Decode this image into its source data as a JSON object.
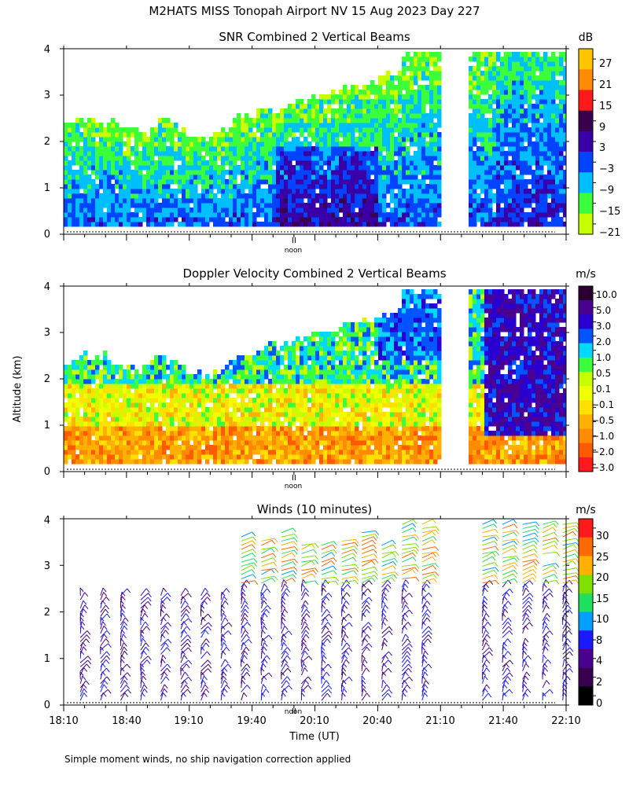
{
  "figure": {
    "title": "M2HATS MISS Tonopah Airport NV  15 Aug 2023 Day 227",
    "ylabel": "Altitude (km)",
    "xlabel": "Time (UT)",
    "footnote": "Simple moment winds, no ship navigation correction applied",
    "noon_label": "noon"
  },
  "colors": {
    "background": "#ffffff",
    "axis": "#000000",
    "snr_scale": [
      "#c8ff00",
      "#3cff3c",
      "#00bfff",
      "#0044ff",
      "#3a00a8",
      "#3a0050",
      "#ff1a1a",
      "#ff8c00",
      "#ffc400"
    ],
    "vel_scale": [
      "#ff1a1a",
      "#ff5a00",
      "#ff8c00",
      "#ffb000",
      "#ffe000",
      "#f0ff00",
      "#c8ff00",
      "#3cff3c",
      "#00d8ff",
      "#0055ff",
      "#2a00d0",
      "#4a0090",
      "#2a0030"
    ],
    "wind_scale": [
      "#000000",
      "#3a0050",
      "#4a0090",
      "#1a1aff",
      "#00a0ff",
      "#20e060",
      "#80e000",
      "#ffb000",
      "#ff6a00",
      "#ff1a1a"
    ]
  },
  "chart_data": [
    {
      "type": "heatmap",
      "title": "SNR Combined 2 Vertical Beams",
      "units": "dB",
      "x_range": [
        "18:10",
        "22:10"
      ],
      "ylim": [
        0,
        4
      ],
      "y_ticks": [
        "0",
        "1",
        "2",
        "3",
        "4"
      ],
      "colorbar_ticks": [
        "27",
        "21",
        "15",
        "9",
        "3",
        "−3",
        "−9",
        "−15",
        "−21"
      ],
      "data_gap": [
        "21:10",
        "21:23"
      ],
      "noon_marker": "noon"
    },
    {
      "type": "heatmap",
      "title": "Doppler Velocity Combined 2 Vertical Beams",
      "units": "m/s",
      "x_range": [
        "18:10",
        "22:10"
      ],
      "ylim": [
        0,
        4
      ],
      "y_ticks": [
        "0",
        "1",
        "2",
        "3",
        "4"
      ],
      "colorbar_ticks": [
        "10.0",
        "5.0",
        "3.0",
        "2.0",
        "1.0",
        "0.5",
        "0.1",
        "−0.1",
        "−0.5",
        "−1.0",
        "−2.0",
        "−3.0"
      ],
      "data_gap": [
        "21:10",
        "21:23"
      ],
      "noon_marker": "noon"
    },
    {
      "type": "scatter",
      "title": "Winds (10 minutes)",
      "units": "m/s",
      "x_ticks": [
        "18:10",
        "18:40",
        "19:10",
        "19:40",
        "20:10",
        "20:40",
        "21:10",
        "21:40",
        "22:10"
      ],
      "ylim": [
        0,
        4
      ],
      "y_ticks": [
        "0",
        "1",
        "2",
        "3",
        "4"
      ],
      "colorbar_ticks": [
        "30",
        "25",
        "20",
        "15",
        "10",
        "8",
        "4",
        "2",
        "0"
      ],
      "profile_interval_minutes": 10,
      "noon_marker": "noon"
    }
  ]
}
